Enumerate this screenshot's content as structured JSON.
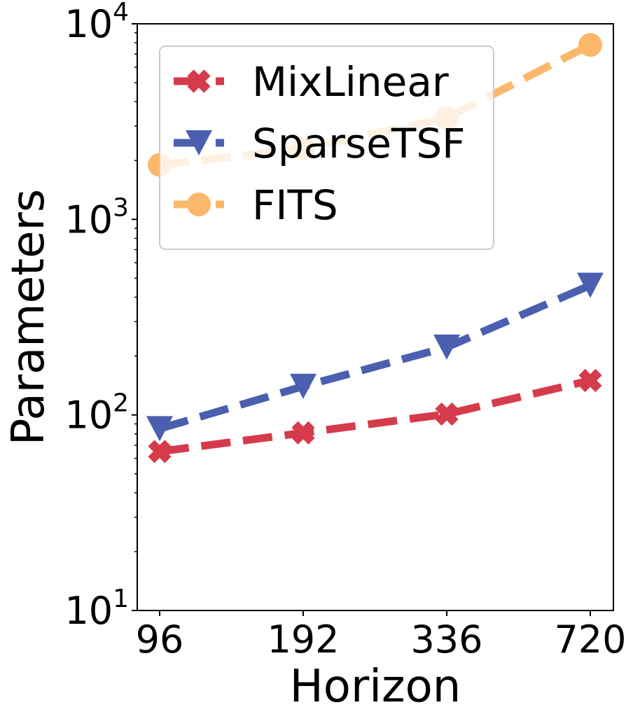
{
  "chart_data": {
    "type": "line",
    "title": "",
    "xlabel": "Horizon",
    "ylabel": "Parameters",
    "yscale": "log",
    "ylim": [
      10,
      10000
    ],
    "categories": [
      "96",
      "192",
      "336",
      "720"
    ],
    "y_ticks": [
      {
        "base": "10",
        "exp": "1",
        "value": 10
      },
      {
        "base": "10",
        "exp": "2",
        "value": 100
      },
      {
        "base": "10",
        "exp": "3",
        "value": 1000
      },
      {
        "base": "10",
        "exp": "4",
        "value": 10000
      }
    ],
    "grid": false,
    "legend_position": "upper-left",
    "series": [
      {
        "name": "MixLinear",
        "values": [
          65,
          81,
          101,
          150
        ],
        "color": "#d63b4c",
        "marker": "x-cross",
        "line_style": "dashed"
      },
      {
        "name": "SparseTSF",
        "values": [
          85,
          140,
          222,
          460
        ],
        "color": "#4a5fb0",
        "marker": "triangle-down",
        "line_style": "dashed"
      },
      {
        "name": "FITS",
        "values": [
          1900,
          2300,
          3300,
          7800
        ],
        "color": "#fbb86b",
        "marker": "circle",
        "line_style": "dashed"
      }
    ]
  }
}
